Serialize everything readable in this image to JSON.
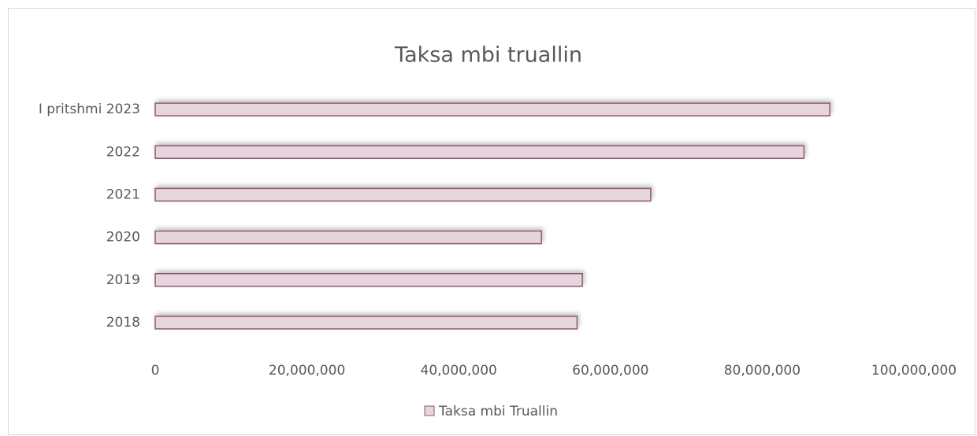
{
  "chart_data": {
    "type": "bar",
    "orientation": "horizontal",
    "title": "Taksa mbi truallin",
    "categories": [
      "2018",
      "2019",
      "2020",
      "2021",
      "2022",
      "I pritshmi 2023"
    ],
    "series": [
      {
        "name": "Taksa mbi Truallin",
        "color": "#e6d5dc",
        "edge_color": "#8e5a72",
        "values": [
          55600000,
          56300000,
          50900000,
          65300000,
          85500000,
          88900000
        ]
      }
    ],
    "xlim": [
      0,
      100000000
    ],
    "xticks": [
      0,
      {
        "value": 20000000,
        "label": "20,000,000"
      },
      {
        "value": 40000000,
        "label": "40,000,000"
      },
      {
        "value": 60000000,
        "label": "60,000,000"
      },
      {
        "value": 80000000,
        "label": "80,000,000"
      },
      {
        "value": 100000000,
        "label": "100,000,000"
      }
    ],
    "grid": false,
    "legend": "bottom"
  }
}
